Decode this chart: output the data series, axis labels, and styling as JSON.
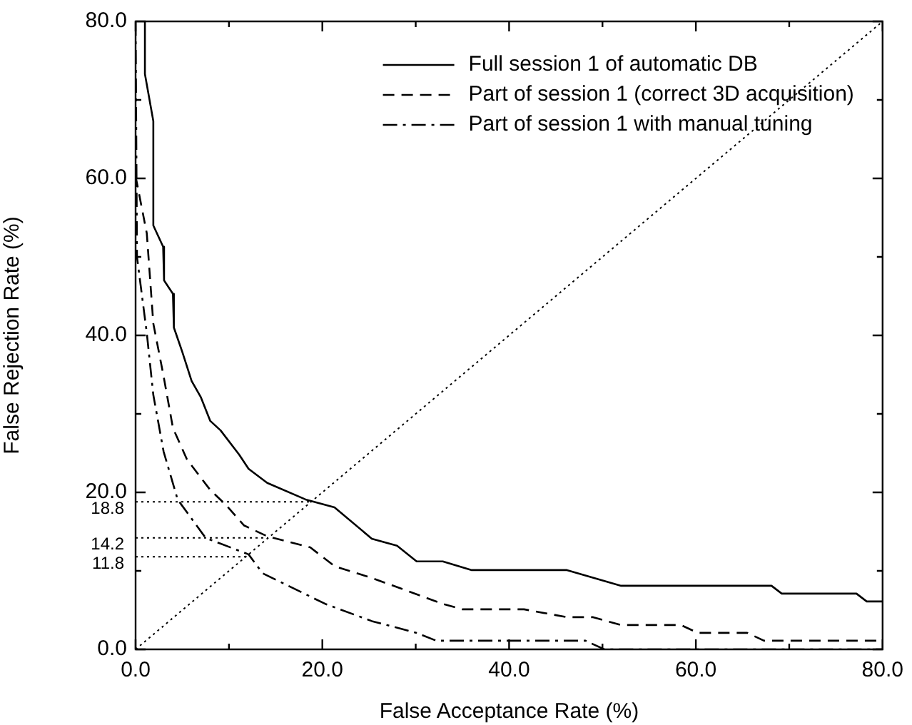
{
  "chart_data": {
    "type": "line",
    "xlabel": "False Acceptance Rate (%)",
    "ylabel": "False Rejection Rate (%)",
    "xlim": [
      0,
      80
    ],
    "ylim": [
      0,
      80
    ],
    "xticks": [
      {
        "value": 0,
        "label": "0.0"
      },
      {
        "value": 10,
        "label": null
      },
      {
        "value": 20,
        "label": "20.0"
      },
      {
        "value": 30,
        "label": null
      },
      {
        "value": 40,
        "label": "40.0"
      },
      {
        "value": 50,
        "label": null
      },
      {
        "value": 60,
        "label": "60.0"
      },
      {
        "value": 70,
        "label": null
      },
      {
        "value": 80,
        "label": "80.0"
      }
    ],
    "yticks": [
      {
        "value": 0,
        "label": "0.0"
      },
      {
        "value": 10,
        "label": null
      },
      {
        "value": 20,
        "label": "20.0"
      },
      {
        "value": 30,
        "label": null
      },
      {
        "value": 40,
        "label": "40.0"
      },
      {
        "value": 50,
        "label": null
      },
      {
        "value": 60,
        "label": "60.0"
      },
      {
        "value": 70,
        "label": null
      },
      {
        "value": 80,
        "label": "80.0"
      }
    ],
    "grid": false,
    "legend": "top right",
    "marker": "none",
    "series": [
      {
        "name": "Full session 1 of automatic DB",
        "color": "#000000",
        "line_style": "solid",
        "x": [
          1.0,
          1.0,
          1.9,
          1.9,
          2.95,
          3.05,
          4.0,
          4.1,
          5.0,
          6.0,
          7.0,
          8.0,
          9.1,
          11.1,
          12.1,
          14.1,
          18.2,
          21.3,
          25.3,
          28.0,
          30.1,
          32.9,
          36.0,
          46.2,
          52.0,
          68.1,
          69.2,
          77.2,
          78.3,
          80
        ],
        "values": [
          80,
          73.3,
          67.3,
          54,
          51.3,
          47,
          45.3,
          41,
          37.9,
          34.2,
          32.1,
          29.1,
          27.9,
          24.8,
          23,
          21.2,
          19.1,
          18.1,
          14.1,
          13.2,
          11.2,
          11.2,
          10.1,
          10.1,
          8.1,
          8.1,
          7.1,
          7.1,
          6.1,
          6.1
        ]
      },
      {
        "name": "Part of session 1 (correct 3D acquisition)",
        "color": "#000000",
        "line_style": "dashed",
        "x": [
          0,
          1.2,
          1.9,
          3.0,
          4.0,
          5.5,
          8.0,
          9.6,
          11.6,
          14.1,
          18.7,
          21.3,
          25.3,
          32.9,
          35.0,
          41.6,
          46.2,
          49.0,
          52.0,
          58.4,
          60.2,
          65.5,
          67.3,
          80
        ],
        "values": [
          60.3,
          53,
          41.5,
          34.8,
          28.2,
          24.2,
          20.3,
          18.5,
          15.8,
          14.4,
          13,
          10.6,
          9.1,
          5.8,
          5.1,
          5.1,
          4.1,
          4.1,
          3.1,
          3.1,
          2.1,
          2.1,
          1.1,
          1.1
        ]
      },
      {
        "name": "Part of session 1 with manual tuning",
        "color": "#000000",
        "line_style": "dashdot",
        "x": [
          0,
          0.15,
          1.2,
          1.9,
          3.0,
          4.5,
          7.5,
          12.1,
          13.6,
          20.3,
          25.3,
          30.1,
          32.2,
          48.2,
          50.2,
          80
        ],
        "values": [
          80,
          50,
          40.3,
          32.4,
          25.2,
          19.1,
          14.2,
          12.1,
          9.7,
          5.8,
          3.6,
          2.1,
          1.1,
          1.1,
          0,
          0
        ]
      },
      {
        "color": "#000000",
        "line_style": "dotted",
        "x": [
          0,
          80
        ],
        "values": [
          0,
          80
        ]
      }
    ],
    "ref_lines": [
      {
        "axis": "y",
        "value": 18.8,
        "label": "18.8",
        "line_style": "dotted"
      },
      {
        "axis": "y",
        "value": 14.2,
        "label": "14.2",
        "line_style": "dotted"
      },
      {
        "axis": "y",
        "value": 11.8,
        "label": "11.8",
        "line_style": "dotted"
      }
    ]
  }
}
